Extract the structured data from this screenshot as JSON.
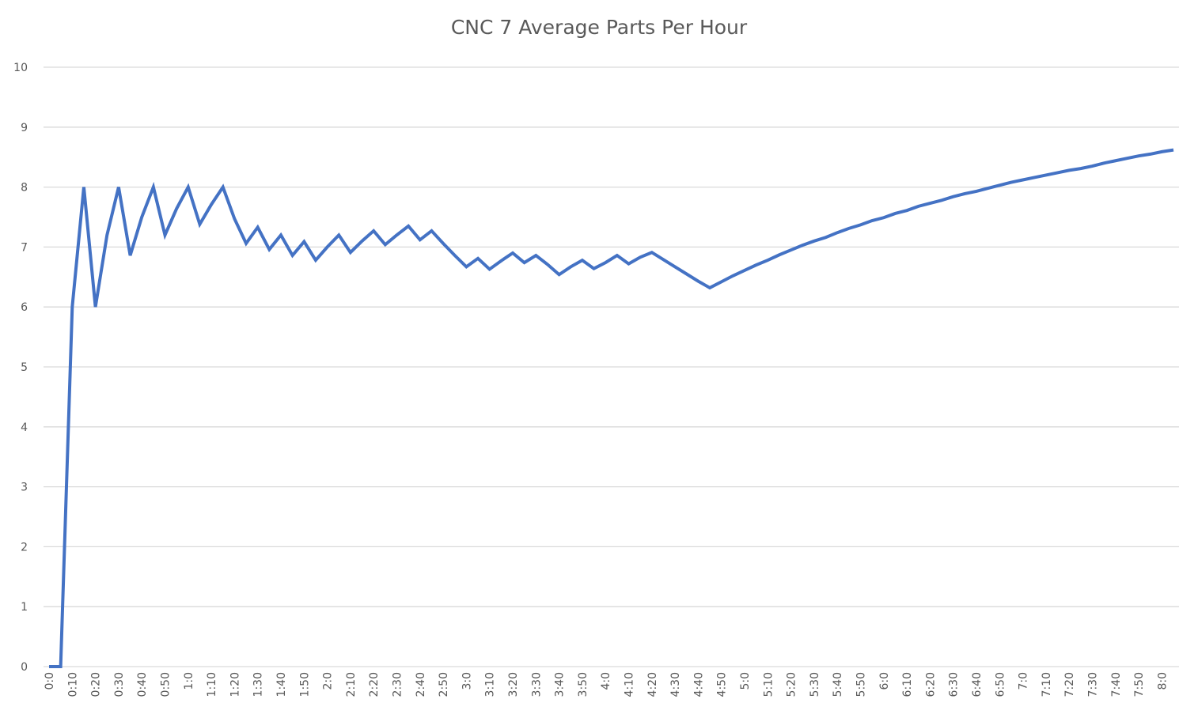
{
  "chart_data": {
    "type": "line",
    "title": "CNC 7 Average Parts Per Hour",
    "xlabel": "",
    "ylabel": "",
    "ylim": [
      0,
      10
    ],
    "y_ticks": [
      0,
      1,
      2,
      3,
      4,
      5,
      6,
      7,
      8,
      9,
      10
    ],
    "grid": true,
    "legend": "none",
    "x_tick_labels": [
      "0:0",
      "0:10",
      "0:20",
      "0:30",
      "0:40",
      "0:50",
      "1:0",
      "1:10",
      "1:20",
      "1:30",
      "1:40",
      "1:50",
      "2:0",
      "2:10",
      "2:20",
      "2:30",
      "2:40",
      "2:50",
      "3:0",
      "3:10",
      "3:20",
      "3:30",
      "3:40",
      "3:50",
      "4:0",
      "4:10",
      "4:20",
      "4:30",
      "4:40",
      "4:50",
      "5:0",
      "5:10",
      "5:20",
      "5:30",
      "5:40",
      "5:50",
      "6:0",
      "6:10",
      "6:20",
      "6:30",
      "6:40",
      "6:50",
      "7:0",
      "7:10",
      "7:20",
      "7:30",
      "7:40",
      "7:50",
      "8:0"
    ],
    "x_minutes_start": 0,
    "x_minutes_step": 5,
    "series": [
      {
        "color": "#4472c4",
        "values": [
          0,
          0,
          6.0,
          8.0,
          6.0,
          7.2,
          8.0,
          6.86,
          7.5,
          8.0,
          7.2,
          7.64,
          8.0,
          7.38,
          7.71,
          8.0,
          7.47,
          7.06,
          7.33,
          6.96,
          7.2,
          6.86,
          7.09,
          6.78,
          7.0,
          7.2,
          6.91,
          7.1,
          7.27,
          7.04,
          7.2,
          7.35,
          7.12,
          7.27,
          7.06,
          6.86,
          6.67,
          6.81,
          6.63,
          6.77,
          6.9,
          6.74,
          6.86,
          6.71,
          6.54,
          6.67,
          6.78,
          6.64,
          6.74,
          6.86,
          6.72,
          6.83,
          6.91,
          6.79,
          6.67,
          6.55,
          6.43,
          6.32,
          6.42,
          6.52,
          6.61,
          6.7,
          6.78,
          6.87,
          6.95,
          7.03,
          7.1,
          7.16,
          7.24,
          7.31,
          7.37,
          7.44,
          7.49,
          7.56,
          7.61,
          7.68,
          7.73,
          7.78,
          7.84,
          7.89,
          7.93,
          7.98,
          8.03,
          8.08,
          8.12,
          8.16,
          8.2,
          8.24,
          8.28,
          8.31,
          8.35,
          8.4,
          8.44,
          8.48,
          8.52,
          8.55,
          8.59,
          8.62
        ]
      }
    ]
  }
}
